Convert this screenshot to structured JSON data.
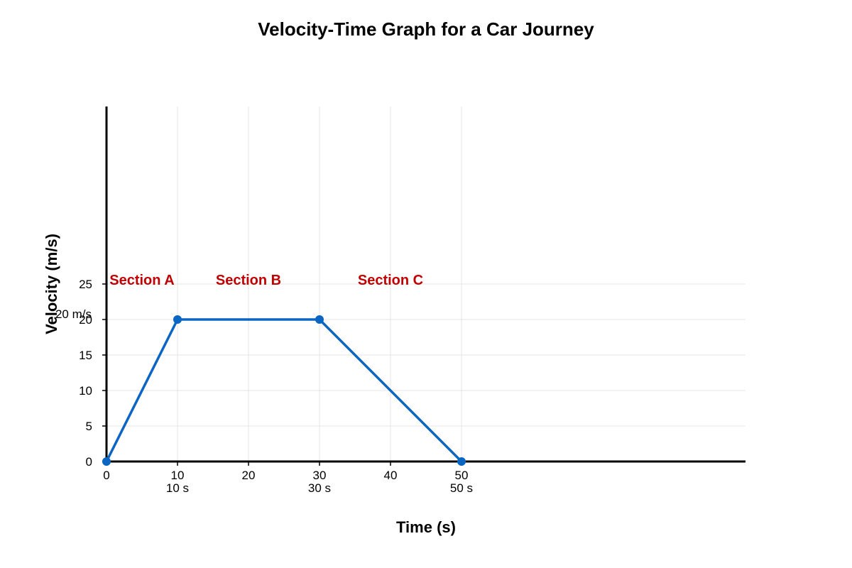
{
  "chart_data": {
    "type": "line",
    "title": "Velocity-Time Graph for a Car Journey",
    "xlabel": "Time (s)",
    "ylabel": "Velocity (m/s)",
    "xlim": [
      0,
      90
    ],
    "ylim": [
      0,
      50
    ],
    "x_ticks": [
      0,
      10,
      20,
      30,
      40,
      50
    ],
    "y_ticks": [
      0,
      5,
      10,
      15,
      20,
      25
    ],
    "grid": true,
    "legend": "none",
    "colors": {
      "line": "#0a66c2",
      "section_labels": "#c00000",
      "grid": "#e6e6e6"
    },
    "series": [
      {
        "x": [
          0,
          10,
          30,
          50
        ],
        "y": [
          0,
          20,
          20,
          0
        ]
      }
    ],
    "annotations": [
      {
        "text": "Section A",
        "x": 5,
        "y": 25.5
      },
      {
        "text": "Section B",
        "x": 20,
        "y": 25.5
      },
      {
        "text": "Section C",
        "x": 40,
        "y": 25.5
      },
      {
        "text": "20 m/s",
        "x": -2.1,
        "y": 20.8
      },
      {
        "text": "10 s",
        "x": 10,
        "y": -3.7
      },
      {
        "text": "30 s",
        "x": 30,
        "y": -3.7
      },
      {
        "text": "50 s",
        "x": 50,
        "y": -3.7
      }
    ]
  }
}
